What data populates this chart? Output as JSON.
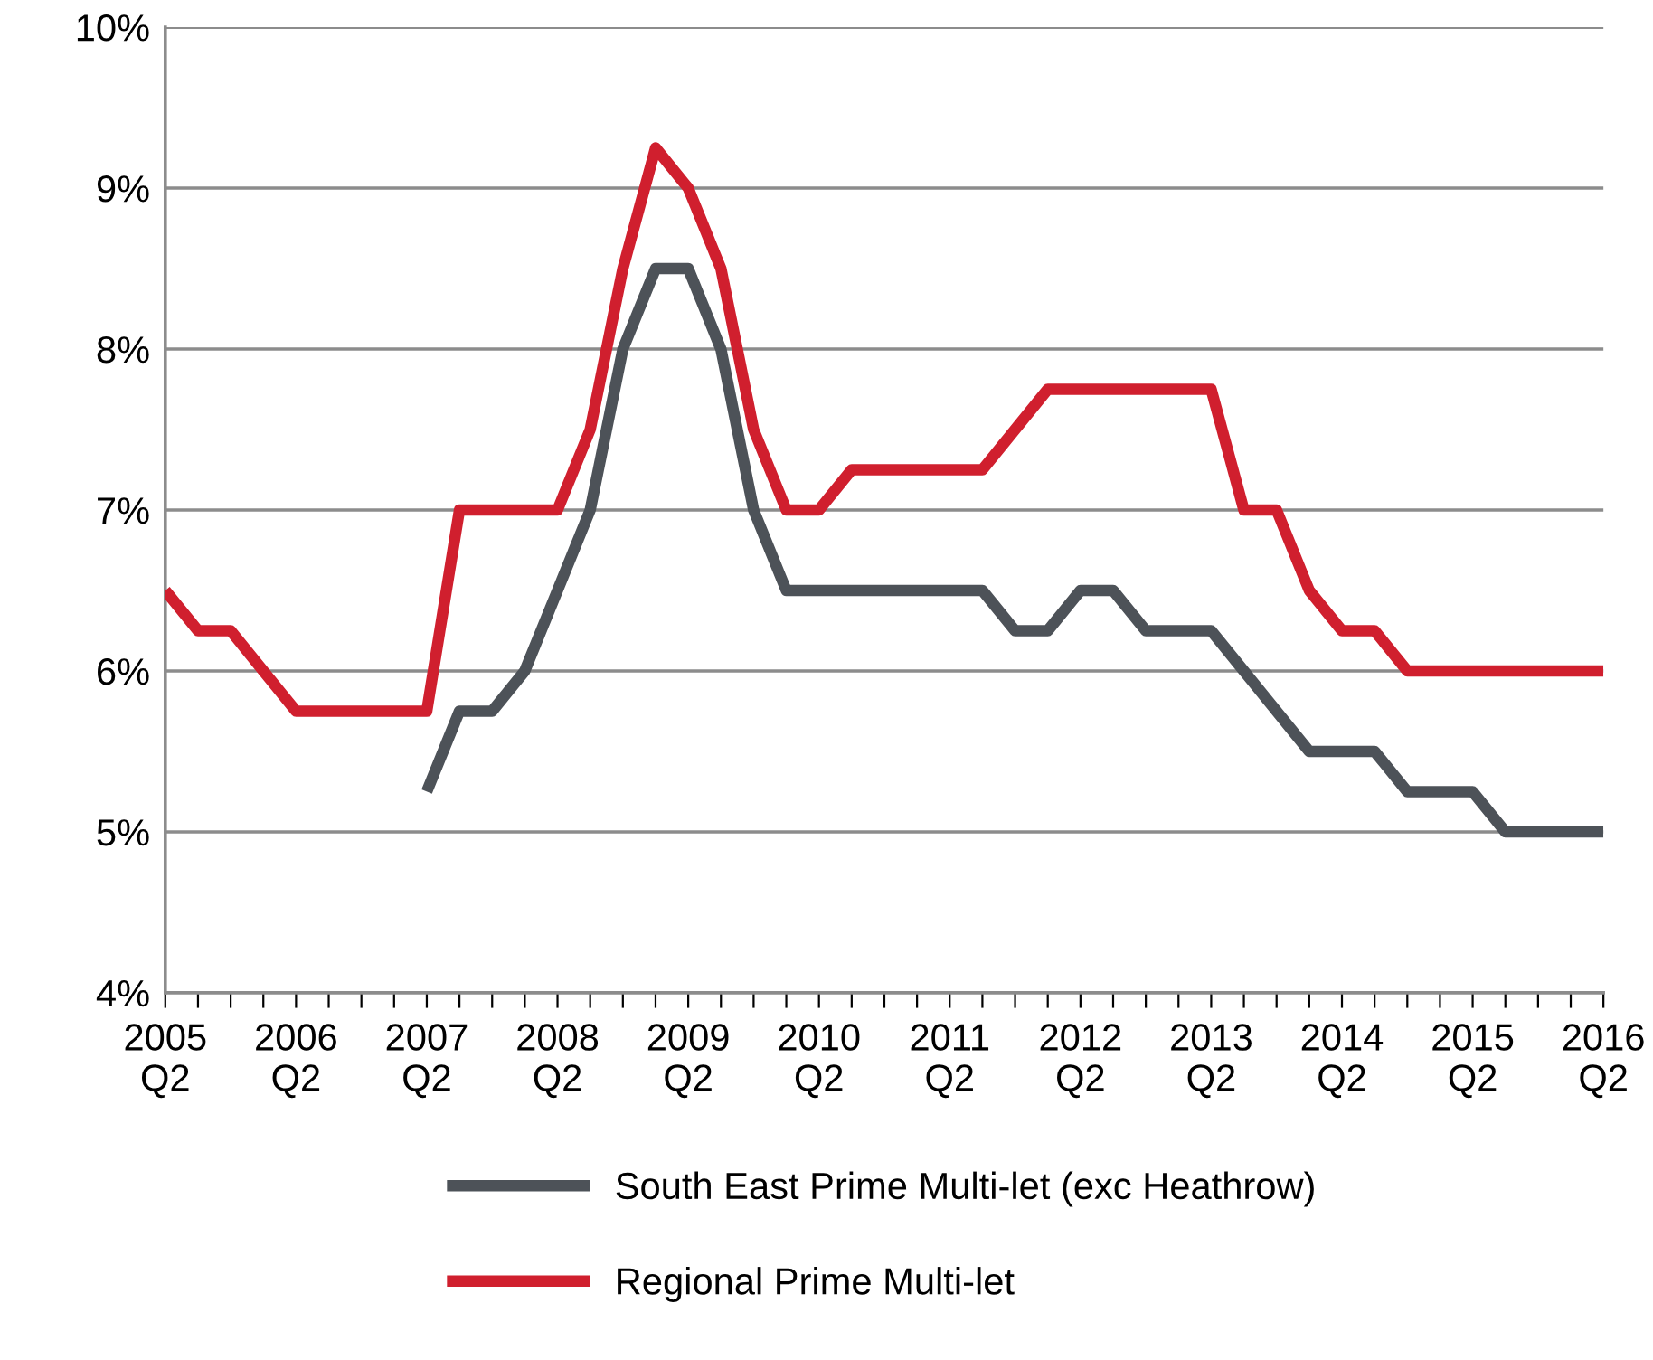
{
  "chart_data": {
    "type": "line",
    "categories": [
      "2005\nQ2",
      null,
      null,
      null,
      "2006\nQ2",
      null,
      null,
      null,
      "2007\nQ2",
      null,
      null,
      null,
      "2008\nQ2",
      null,
      null,
      null,
      "2009\nQ2",
      null,
      null,
      null,
      "2010\nQ2",
      null,
      null,
      null,
      "2011\nQ2",
      null,
      null,
      null,
      "2012\nQ2",
      null,
      null,
      null,
      "2013\nQ2",
      null,
      null,
      null,
      "2014\nQ2",
      null,
      null,
      null,
      "2015\nQ2",
      null,
      null,
      null,
      "2016\nQ2"
    ],
    "series": [
      {
        "name": "South East Prime Multi-let (exc Heathrow)",
        "color": "#4d5258",
        "values": [
          null,
          null,
          null,
          null,
          null,
          null,
          null,
          null,
          5.25,
          5.75,
          5.75,
          6.0,
          6.5,
          7.0,
          8.0,
          8.5,
          8.5,
          8.0,
          7.0,
          6.5,
          6.5,
          6.5,
          6.5,
          6.5,
          6.5,
          6.5,
          6.25,
          6.25,
          6.5,
          6.5,
          6.25,
          6.25,
          6.25,
          6.0,
          5.75,
          5.5,
          5.5,
          5.5,
          5.25,
          5.25,
          5.25,
          5.0,
          5.0,
          5.0,
          5.0
        ]
      },
      {
        "name": "Regional Prime Multi-let",
        "color": "#d01f2e",
        "values": [
          6.5,
          6.25,
          6.25,
          6.0,
          5.75,
          5.75,
          5.75,
          5.75,
          5.75,
          7.0,
          7.0,
          7.0,
          7.0,
          7.5,
          8.5,
          9.25,
          9.0,
          8.5,
          7.5,
          7.0,
          7.0,
          7.25,
          7.25,
          7.25,
          7.25,
          7.25,
          7.5,
          7.75,
          7.75,
          7.75,
          7.75,
          7.75,
          7.75,
          7.0,
          7.0,
          6.5,
          6.25,
          6.25,
          6.0,
          6.0,
          6.0,
          6.0,
          6.0,
          6.0,
          6.0
        ]
      }
    ],
    "ylim": [
      4,
      10
    ],
    "yticks": [
      {
        "value": 4,
        "label": "4%"
      },
      {
        "value": 5,
        "label": "5%"
      },
      {
        "value": 6,
        "label": "6%"
      },
      {
        "value": 7,
        "label": "7%"
      },
      {
        "value": 8,
        "label": "8%"
      },
      {
        "value": 9,
        "label": "9%"
      },
      {
        "value": 10,
        "label": "10%"
      }
    ],
    "grid": "y",
    "legend": "bottom",
    "marker": "none",
    "line_style": "solid"
  }
}
